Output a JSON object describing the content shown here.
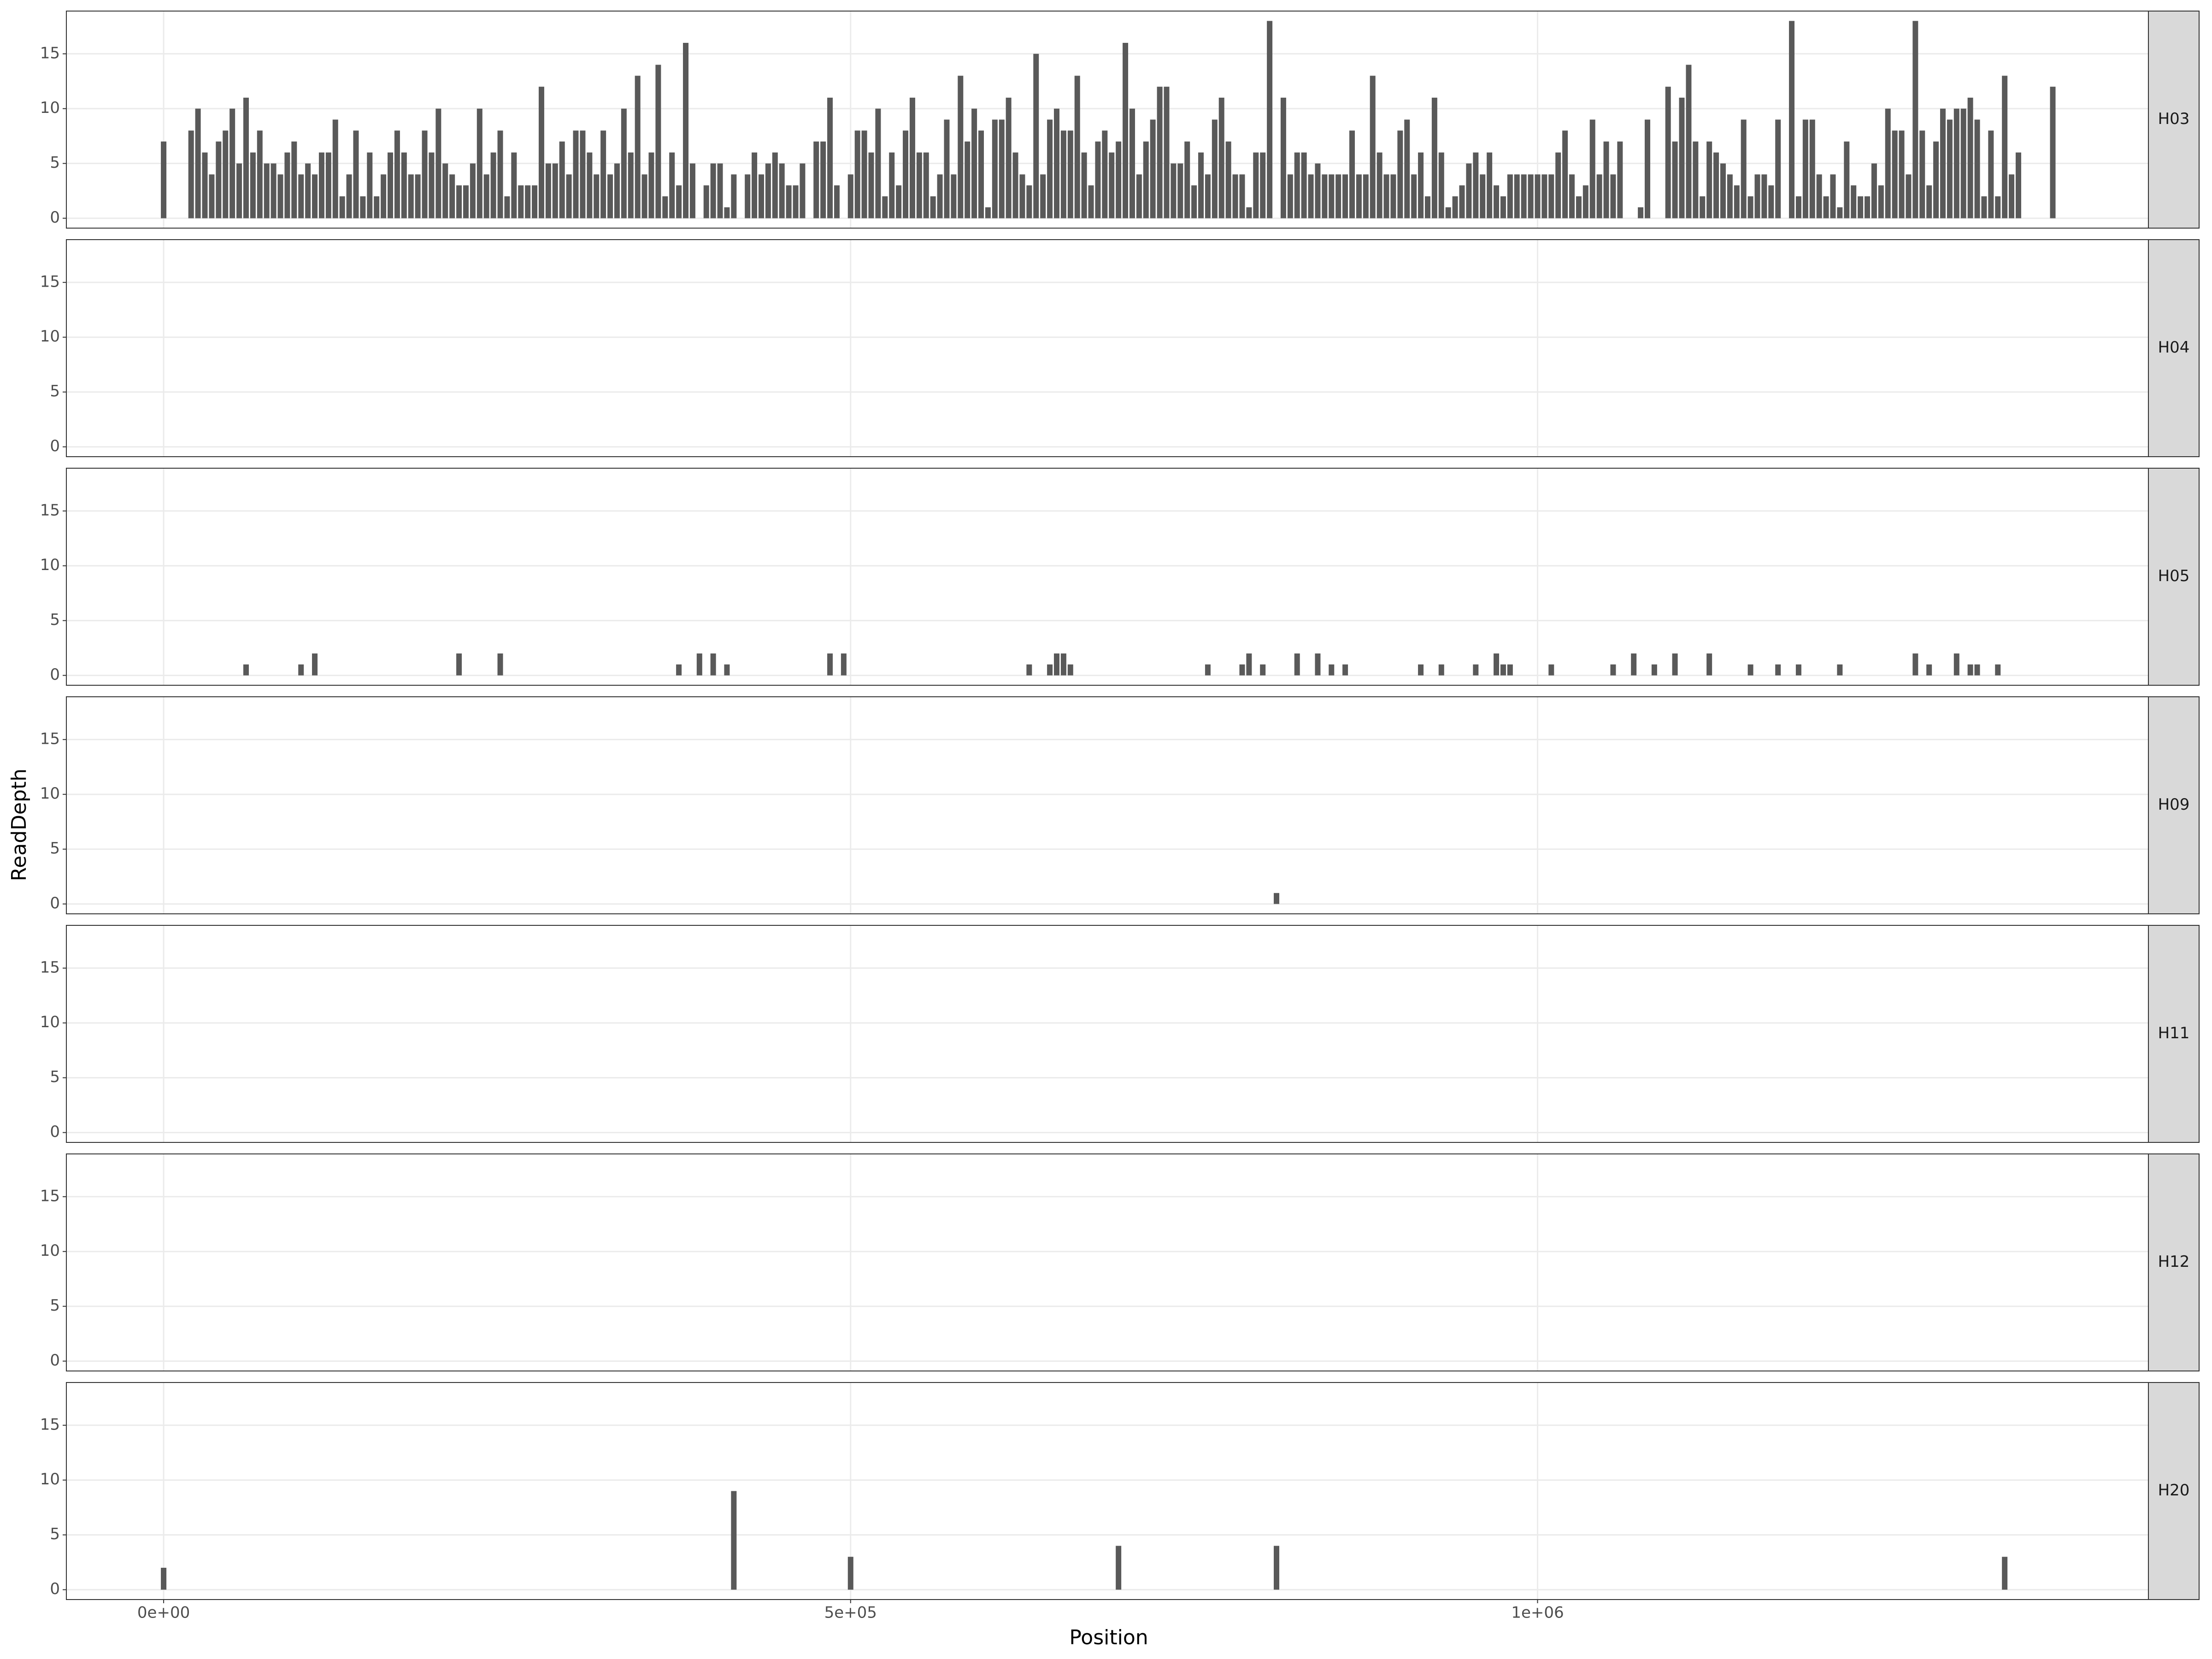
{
  "chart_data": {
    "type": "bar",
    "x_label": "Position",
    "y_label": "ReadDepth",
    "xlim": [
      -70800,
      1444600
    ],
    "ylim": [
      -0.9,
      18.9
    ],
    "xticks": [
      {
        "value": 0,
        "label": "0e+00"
      },
      {
        "value": 500000,
        "label": "5e+05"
      },
      {
        "value": 1000000,
        "label": "1e+06"
      }
    ],
    "yticks": [
      0,
      5,
      10,
      15
    ],
    "grid": true,
    "color": "#595959",
    "facets": [
      {
        "name": "H03",
        "x": [
          0,
          20000,
          25000,
          30000,
          35000,
          40000,
          45000,
          50000,
          55000,
          60000,
          65000,
          70000,
          75000,
          80000,
          85000,
          90000,
          95000,
          100000,
          105000,
          110000,
          115000,
          120000,
          125000,
          130000,
          135000,
          140000,
          145000,
          150000,
          155000,
          160000,
          165000,
          170000,
          175000,
          180000,
          185000,
          190000,
          195000,
          200000,
          205000,
          210000,
          215000,
          220000,
          225000,
          230000,
          235000,
          240000,
          245000,
          250000,
          255000,
          260000,
          265000,
          270000,
          275000,
          280000,
          285000,
          290000,
          295000,
          300000,
          305000,
          310000,
          315000,
          320000,
          325000,
          330000,
          335000,
          340000,
          345000,
          350000,
          355000,
          360000,
          365000,
          370000,
          375000,
          380000,
          385000,
          395000,
          400000,
          405000,
          410000,
          415000,
          425000,
          430000,
          435000,
          440000,
          445000,
          450000,
          455000,
          460000,
          465000,
          475000,
          480000,
          485000,
          490000,
          500000,
          505000,
          510000,
          515000,
          520000,
          525000,
          530000,
          535000,
          540000,
          545000,
          550000,
          555000,
          560000,
          565000,
          570000,
          575000,
          580000,
          585000,
          590000,
          595000,
          600000,
          605000,
          610000,
          615000,
          620000,
          625000,
          630000,
          635000,
          640000,
          645000,
          650000,
          655000,
          660000,
          665000,
          670000,
          675000,
          680000,
          685000,
          690000,
          695000,
          700000,
          705000,
          710000,
          715000,
          720000,
          725000,
          730000,
          735000,
          740000,
          745000,
          750000,
          755000,
          760000,
          765000,
          770000,
          775000,
          780000,
          785000,
          790000,
          795000,
          800000,
          805000,
          815000,
          820000,
          825000,
          830000,
          835000,
          840000,
          845000,
          850000,
          855000,
          860000,
          865000,
          870000,
          875000,
          880000,
          885000,
          890000,
          895000,
          900000,
          905000,
          910000,
          915000,
          920000,
          925000,
          930000,
          935000,
          940000,
          945000,
          950000,
          955000,
          960000,
          965000,
          970000,
          975000,
          980000,
          985000,
          990000,
          995000,
          1000000,
          1005000,
          1010000,
          1015000,
          1020000,
          1025000,
          1030000,
          1035000,
          1040000,
          1045000,
          1050000,
          1055000,
          1060000,
          1075000,
          1080000,
          1095000,
          1100000,
          1105000,
          1110000,
          1115000,
          1120000,
          1125000,
          1130000,
          1135000,
          1140000,
          1145000,
          1150000,
          1155000,
          1160000,
          1165000,
          1170000,
          1175000,
          1185000,
          1190000,
          1195000,
          1200000,
          1205000,
          1210000,
          1215000,
          1220000,
          1225000,
          1230000,
          1235000,
          1240000,
          1245000,
          1250000,
          1255000,
          1260000,
          1265000,
          1270000,
          1275000,
          1280000,
          1285000,
          1290000,
          1295000,
          1300000,
          1305000,
          1310000,
          1315000,
          1320000,
          1325000,
          1330000,
          1335000,
          1340000,
          1345000,
          1350000,
          1375000
        ],
        "values": [
          7,
          8,
          10,
          6,
          4,
          7,
          8,
          10,
          5,
          11,
          6,
          8,
          5,
          5,
          4,
          6,
          7,
          4,
          5,
          4,
          6,
          6,
          9,
          2,
          4,
          8,
          2,
          6,
          2,
          4,
          6,
          8,
          6,
          4,
          4,
          8,
          6,
          10,
          5,
          4,
          3,
          3,
          5,
          10,
          4,
          6,
          8,
          2,
          6,
          3,
          3,
          3,
          12,
          5,
          5,
          7,
          4,
          8,
          8,
          6,
          4,
          8,
          4,
          5,
          10,
          6,
          13,
          4,
          6,
          14,
          2,
          6,
          3,
          16,
          5,
          3,
          5,
          5,
          1,
          4,
          4,
          6,
          4,
          5,
          6,
          5,
          3,
          3,
          5,
          7,
          7,
          11,
          3,
          4,
          8,
          8,
          6,
          10,
          2,
          6,
          3,
          8,
          11,
          6,
          6,
          2,
          4,
          9,
          4,
          13,
          7,
          10,
          8,
          1,
          9,
          9,
          11,
          6,
          4,
          3,
          15,
          4,
          9,
          10,
          8,
          8,
          13,
          6,
          3,
          7,
          8,
          6,
          7,
          16,
          10,
          4,
          7,
          9,
          12,
          12,
          5,
          5,
          7,
          3,
          6,
          4,
          9,
          11,
          7,
          4,
          4,
          1,
          6,
          6,
          18,
          11,
          4,
          6,
          6,
          4,
          5,
          4,
          4,
          4,
          4,
          8,
          4,
          4,
          13,
          6,
          4,
          4,
          8,
          9,
          4,
          6,
          2,
          11,
          6,
          1,
          2,
          3,
          5,
          6,
          4,
          6,
          3,
          2,
          4,
          4,
          4,
          4,
          4,
          4,
          4,
          6,
          8,
          4,
          2,
          3,
          9,
          4,
          7,
          4,
          7,
          1,
          9,
          12,
          7,
          11,
          14,
          7,
          2,
          7,
          6,
          5,
          4,
          3,
          9,
          2,
          4,
          4,
          3,
          9,
          18,
          2,
          9,
          9,
          4,
          2,
          4,
          1,
          7,
          3,
          2,
          2,
          5,
          3,
          10,
          8,
          8,
          4,
          18,
          8,
          3,
          7,
          10,
          9,
          10,
          10,
          11,
          9,
          2,
          8,
          2,
          13,
          4,
          6,
          12
        ]
      },
      {
        "name": "H04",
        "x": [],
        "values": []
      },
      {
        "name": "H05",
        "x": [
          60000,
          100000,
          110000,
          215000,
          245000,
          375000,
          390000,
          400000,
          410000,
          485000,
          495000,
          630000,
          645000,
          650000,
          655000,
          660000,
          760000,
          785000,
          790000,
          800000,
          825000,
          840000,
          850000,
          860000,
          915000,
          930000,
          955000,
          970000,
          975000,
          980000,
          1010000,
          1055000,
          1070000,
          1085000,
          1100000,
          1125000,
          1155000,
          1175000,
          1190000,
          1220000,
          1275000,
          1285000,
          1305000,
          1315000,
          1320000,
          1335000
        ],
        "values": [
          1,
          1,
          2,
          2,
          2,
          1,
          2,
          2,
          1,
          2,
          2,
          1,
          1,
          2,
          2,
          1,
          1,
          1,
          2,
          1,
          2,
          2,
          1,
          1,
          1,
          1,
          1,
          2,
          1,
          1,
          1,
          1,
          2,
          1,
          2,
          2,
          1,
          1,
          1,
          1,
          2,
          1,
          2,
          1,
          1,
          1
        ]
      },
      {
        "name": "H09",
        "x": [
          810000
        ],
        "values": [
          1
        ]
      },
      {
        "name": "H11",
        "x": [],
        "values": []
      },
      {
        "name": "H12",
        "x": [],
        "values": []
      },
      {
        "name": "H20",
        "x": [
          0,
          415000,
          500000,
          695000,
          810000,
          1340000
        ],
        "values": [
          2,
          9,
          3,
          4,
          4,
          3
        ]
      }
    ]
  }
}
